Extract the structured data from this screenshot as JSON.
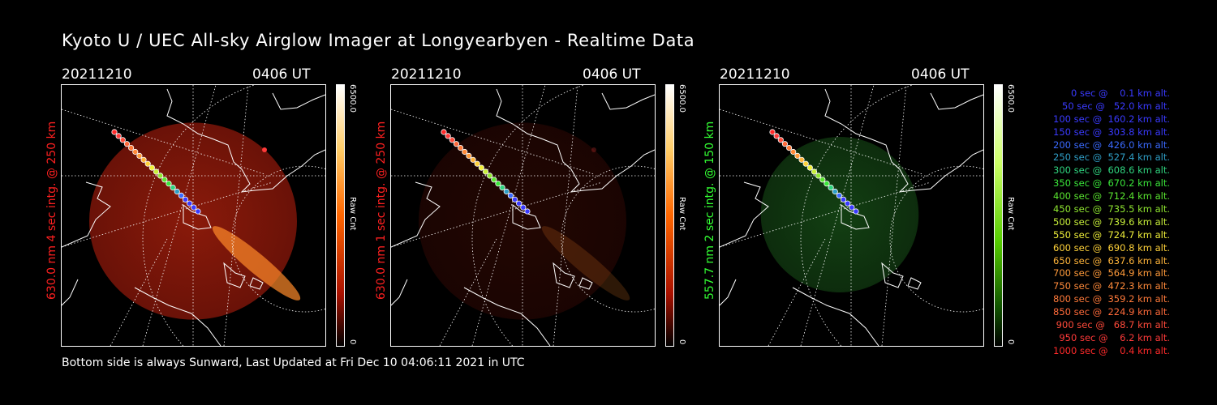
{
  "title": "Kyoto U / UEC All-sky Airglow Imager at Longyearbyen - Realtime Data",
  "panels": [
    {
      "date": "20211210",
      "time": "0406 UT",
      "side_label": "630.0 nm 4 sec intg. @ 250 km",
      "side_color": "#ff2020",
      "colorbar_max": "6500.0",
      "colorbar_min": "0",
      "colorbar_label": "Raw Cnt",
      "theme": "red",
      "intensity": 1.0
    },
    {
      "date": "20211210",
      "time": "0406 UT",
      "side_label": "630.0 nm 1 sec intg. @ 250 km",
      "side_color": "#ff2020",
      "colorbar_max": "6500.0",
      "colorbar_min": "0",
      "colorbar_label": "Raw Cnt",
      "theme": "red",
      "intensity": 0.25
    },
    {
      "date": "20211210",
      "time": "0406 UT",
      "side_label": "557.7 nm 2 sec intg. @ 150 km",
      "side_color": "#33ff33",
      "colorbar_max": "6500.0",
      "colorbar_min": "0",
      "colorbar_label": "Raw Cnt",
      "theme": "green",
      "intensity": 0.6
    }
  ],
  "footer": "Bottom side is always Sunward, Last Updated at Fri Dec 10 04:06:11 2021 in UTC",
  "legend": [
    {
      "sec": "0",
      "alt": "0.1",
      "color": "#3a3aff"
    },
    {
      "sec": "50",
      "alt": "52.0",
      "color": "#3a3aff"
    },
    {
      "sec": "100",
      "alt": "160.2",
      "color": "#3a3aff"
    },
    {
      "sec": "150",
      "alt": "303.8",
      "color": "#3a3aff"
    },
    {
      "sec": "200",
      "alt": "426.0",
      "color": "#3a6aff"
    },
    {
      "sec": "250",
      "alt": "527.4",
      "color": "#2f9fc7"
    },
    {
      "sec": "300",
      "alt": "608.6",
      "color": "#2fd47f"
    },
    {
      "sec": "350",
      "alt": "670.2",
      "color": "#3ae63a"
    },
    {
      "sec": "400",
      "alt": "712.4",
      "color": "#5ae630"
    },
    {
      "sec": "450",
      "alt": "735.5",
      "color": "#8fe630"
    },
    {
      "sec": "500",
      "alt": "739.6",
      "color": "#c8ef3a"
    },
    {
      "sec": "550",
      "alt": "724.7",
      "color": "#f0f03a"
    },
    {
      "sec": "600",
      "alt": "690.8",
      "color": "#ffd23a"
    },
    {
      "sec": "650",
      "alt": "637.6",
      "color": "#ffb43a"
    },
    {
      "sec": "700",
      "alt": "564.9",
      "color": "#ff9a3a"
    },
    {
      "sec": "750",
      "alt": "472.3",
      "color": "#ff8a3a"
    },
    {
      "sec": "800",
      "alt": "359.2",
      "color": "#ff7a3a"
    },
    {
      "sec": "850",
      "alt": "224.9",
      "color": "#ff6a3a"
    },
    {
      "sec": "900",
      "alt": "68.7",
      "color": "#ff4a3a"
    },
    {
      "sec": "950",
      "alt": "6.2",
      "color": "#ff3a3a"
    },
    {
      "sec": "1000",
      "alt": "0.4",
      "color": "#ff2a2a"
    }
  ]
}
